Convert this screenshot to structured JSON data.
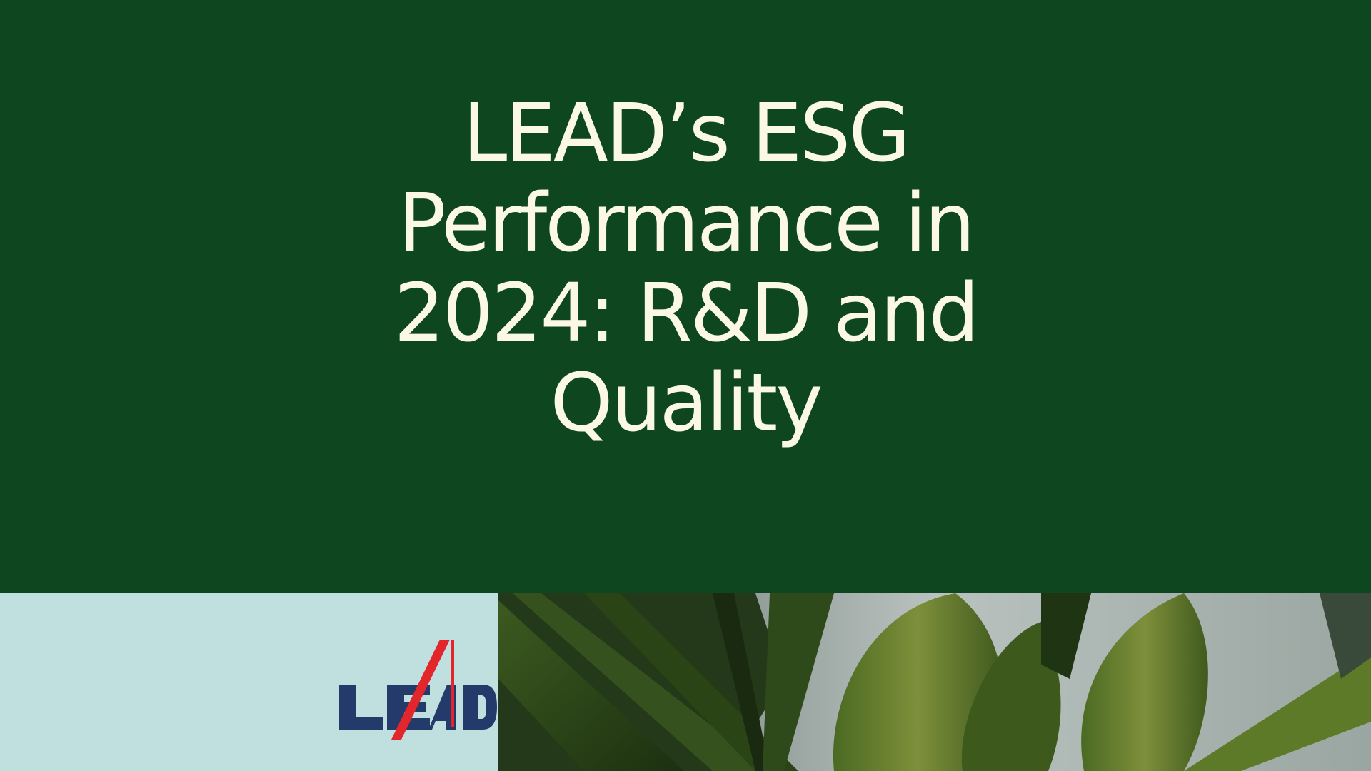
{
  "slide": {
    "title": "LEAD’s ESG Performance in 2024: R&D and Quality",
    "logo_text": "LEAD",
    "colors": {
      "background": "#0d461f",
      "title": "#fbf8e6",
      "logo_panel": "#c0e0e0",
      "logo_blue": "#233a6b",
      "logo_red": "#e3262c"
    }
  }
}
